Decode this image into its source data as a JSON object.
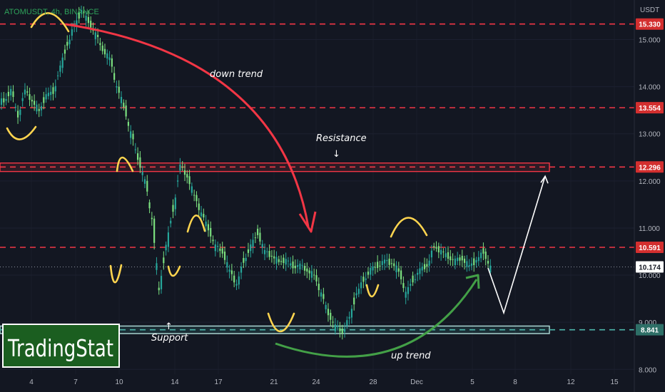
{
  "chart_data": {
    "type": "candlestick",
    "title": "ATOMUSDT, 4h, BINANCE",
    "currency": "USDT",
    "y_ticks": [
      "15.000",
      "14.000",
      "13.000",
      "12.000",
      "11.000",
      "10.000",
      "9.000",
      "8.000"
    ],
    "y_tick_values": [
      15,
      14,
      13,
      12,
      11,
      10,
      9,
      8
    ],
    "x_ticks": [
      "4",
      "7",
      "10",
      "14",
      "17",
      "21",
      "24",
      "28",
      "Dec",
      "5",
      "8",
      "12",
      "15"
    ],
    "ylim": [
      7.52,
      15.84
    ],
    "price_levels": [
      {
        "label": "15.330",
        "value": 15.33
      },
      {
        "label": "13.554",
        "value": 13.554
      },
      {
        "label": "12.296",
        "value": 12.296
      },
      {
        "label": "10.591",
        "value": 10.591
      },
      {
        "label": "8.841",
        "value": 8.841
      }
    ],
    "current_price": {
      "label": "10.174",
      "value": 10.174
    },
    "zones": [
      {
        "name": "resistance",
        "low": 12.2,
        "high": 12.38
      },
      {
        "name": "support",
        "low": 8.76,
        "high": 8.92
      }
    ],
    "series": [
      {
        "values": [
          13.7,
          13.9,
          13.4,
          13.9,
          13.7,
          13.5,
          13.8,
          13.9,
          14.4,
          14.9,
          15.3,
          15.6,
          15.4,
          15.1,
          14.8,
          14.6,
          14.0,
          13.6,
          13.0,
          12.5,
          12.0,
          11.2,
          9.7,
          10.6,
          11.4,
          12.3,
          12.1,
          11.7,
          11.3,
          11.0,
          10.6,
          10.5,
          10.1,
          9.8,
          10.3,
          10.6,
          10.9,
          10.5,
          10.4,
          10.3,
          10.3,
          10.2,
          10.2,
          10.1,
          10.0,
          9.6,
          9.2,
          8.9,
          8.8,
          9.1,
          9.6,
          9.9,
          10.1,
          10.2,
          10.3,
          10.25,
          10.1,
          9.6,
          9.9,
          10.1,
          10.2,
          10.6,
          10.5,
          10.4,
          10.3,
          10.35,
          10.2,
          10.3,
          10.5,
          10.15
        ]
      },
      {
        "name": "projection",
        "values": [
          10.15,
          9.2,
          12.1
        ]
      }
    ]
  },
  "annotations": {
    "down_trend": "down trend",
    "up_trend": "up trend",
    "resistance": "Resistance",
    "support": "Support",
    "resistance_arrow": "↓",
    "support_arrow": "↑"
  },
  "brand": {
    "name": "TradingStat"
  },
  "colors": {
    "background": "#131722",
    "candle_up": "#26a69a",
    "candle_down": "#7be07f",
    "level_line": "#f23645",
    "support_line": "#4db6ac",
    "down_arrow": "#f23645",
    "up_arrow": "#43a047",
    "highlight": "#ffd54f",
    "brand_box": "#1b5e20"
  }
}
